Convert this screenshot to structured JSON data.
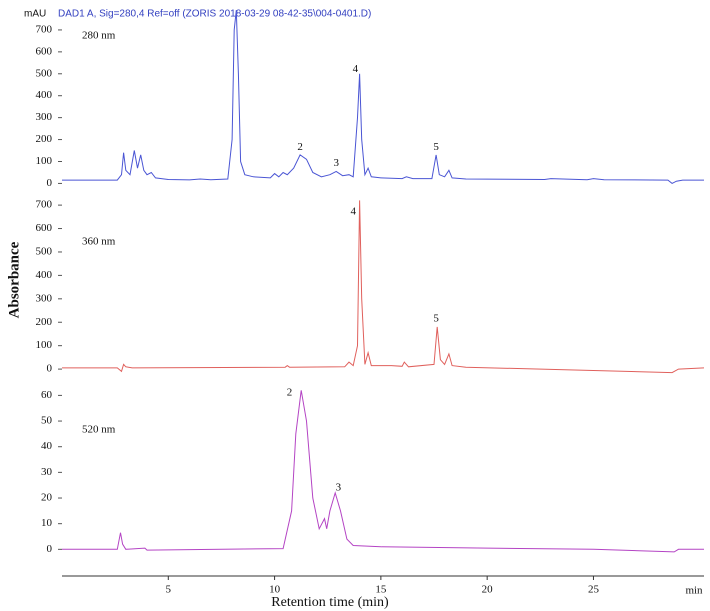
{
  "axes": {
    "title": "DAD1 A, Sig=280,4 Ref=off (ZORIS 2018-03-29 08-42-35\\004-0401.D)",
    "y_unit": "mAU",
    "ylabel": "Absorbance",
    "xlabel": "Retention time (min)",
    "x_unit": "min",
    "xlim": [
      0,
      30.2
    ],
    "xticks": [
      5,
      10,
      15,
      20,
      25
    ]
  },
  "chart_data": [
    {
      "type": "line",
      "label": "280 nm",
      "ylim": [
        -30,
        800
      ],
      "yticks": [
        0,
        100,
        200,
        300,
        400,
        500,
        600,
        700
      ],
      "series": [
        {
          "color": "#4a55d4",
          "x": [
            0,
            2.6,
            2.8,
            2.9,
            3.0,
            3.2,
            3.4,
            3.55,
            3.7,
            3.85,
            4.0,
            4.2,
            4.4,
            5,
            6,
            6.5,
            7,
            7.8,
            8.0,
            8.1,
            8.2,
            8.3,
            8.4,
            8.6,
            9,
            9.8,
            10.0,
            10.2,
            10.4,
            10.6,
            10.9,
            11.2,
            11.5,
            11.8,
            12.2,
            12.6,
            12.9,
            13.2,
            13.5,
            13.7,
            13.9,
            14.0,
            14.1,
            14.25,
            14.4,
            14.55,
            15,
            16,
            16.2,
            16.5,
            17.4,
            17.6,
            17.75,
            18.0,
            18.2,
            18.35,
            19,
            22.7,
            23,
            24.7,
            25,
            25.5,
            28.5,
            28.7,
            28.9,
            29.2,
            30.2
          ],
          "values": [
            15,
            15,
            40,
            140,
            60,
            40,
            150,
            70,
            130,
            60,
            40,
            50,
            25,
            18,
            16,
            20,
            17,
            20,
            200,
            700,
            790,
            500,
            100,
            40,
            30,
            25,
            45,
            30,
            50,
            40,
            70,
            130,
            110,
            50,
            30,
            40,
            55,
            35,
            40,
            30,
            300,
            500,
            200,
            40,
            70,
            30,
            25,
            22,
            30,
            22,
            22,
            130,
            40,
            30,
            60,
            25,
            20,
            18,
            22,
            17,
            22,
            17,
            15,
            0,
            10,
            15,
            15
          ]
        }
      ],
      "annotations": [
        {
          "text": "2",
          "x": 11.2,
          "y": 165
        },
        {
          "text": "3",
          "x": 12.9,
          "y": 90
        },
        {
          "text": "4",
          "x": 13.8,
          "y": 520
        },
        {
          "text": "5",
          "x": 17.6,
          "y": 165
        }
      ]
    },
    {
      "type": "line",
      "label": "360 nm",
      "ylim": [
        -38,
        756
      ],
      "yticks": [
        0,
        100,
        200,
        300,
        400,
        500,
        600,
        700
      ],
      "series": [
        {
          "color": "#e0605c",
          "x": [
            0,
            2.6,
            2.8,
            2.9,
            3.0,
            3.3,
            10.5,
            10.6,
            10.7,
            13.3,
            13.5,
            13.7,
            13.9,
            14.0,
            14.1,
            14.25,
            14.4,
            14.55,
            15.5,
            16.0,
            16.1,
            16.3,
            17.5,
            17.65,
            17.8,
            18.0,
            18.2,
            18.35,
            19,
            28.7,
            29,
            30.2
          ],
          "values": [
            5,
            5,
            -10,
            20,
            10,
            5,
            8,
            15,
            8,
            10,
            30,
            15,
            100,
            720,
            300,
            20,
            70,
            15,
            15,
            12,
            30,
            10,
            20,
            180,
            40,
            20,
            65,
            15,
            8,
            -15,
            0,
            5
          ]
        }
      ],
      "annotations": [
        {
          "text": "4",
          "x": 13.7,
          "y": 670
        },
        {
          "text": "5",
          "x": 17.6,
          "y": 215
        }
      ]
    },
    {
      "type": "line",
      "label": "520 nm",
      "ylim": [
        -10,
        66
      ],
      "yticks": [
        0,
        10,
        20,
        30,
        40,
        50,
        60
      ],
      "series": [
        {
          "color": "#b444c4",
          "x": [
            0,
            2.6,
            2.75,
            2.85,
            3,
            3.9,
            4,
            10.4,
            10.8,
            11.0,
            11.25,
            11.5,
            11.8,
            12.1,
            12.35,
            12.45,
            12.6,
            12.85,
            13.1,
            13.4,
            13.7,
            15,
            20,
            25,
            28.8,
            29,
            30.2
          ],
          "values": [
            0,
            0,
            6.5,
            2,
            0,
            0.5,
            -0.3,
            0.3,
            15,
            45,
            62,
            50,
            20,
            8,
            12,
            8,
            15,
            22,
            15,
            4,
            1.5,
            1,
            0.5,
            0,
            -1,
            0,
            0
          ]
        }
      ],
      "annotations": [
        {
          "text": "2",
          "x": 10.7,
          "y": 61
        },
        {
          "text": "3",
          "x": 13.0,
          "y": 24
        }
      ]
    }
  ]
}
